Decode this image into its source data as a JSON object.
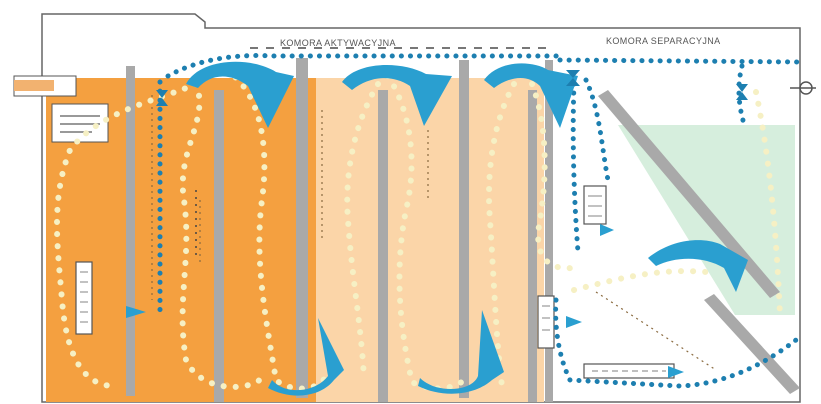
{
  "labels": {
    "activation_chamber": "KOMORA AKTYWACYJNA",
    "separation_chamber": "KOMORA SEPARACYJNA"
  },
  "colors": {
    "zone_dark_orange": "#f4a040",
    "zone_light_orange": "#fbd5a8",
    "zone_green": "#d6eedd",
    "baffle_gray": "#a9a9a9",
    "flow_blue": "#2a9fd0",
    "air_dot_blue": "#1d7fb0",
    "sludge_dot": "#f6f0c4",
    "outline": "#666666"
  },
  "icons": {
    "outlet": "outlet-arrow-icon",
    "flow": "flow-arrow-icon"
  }
}
